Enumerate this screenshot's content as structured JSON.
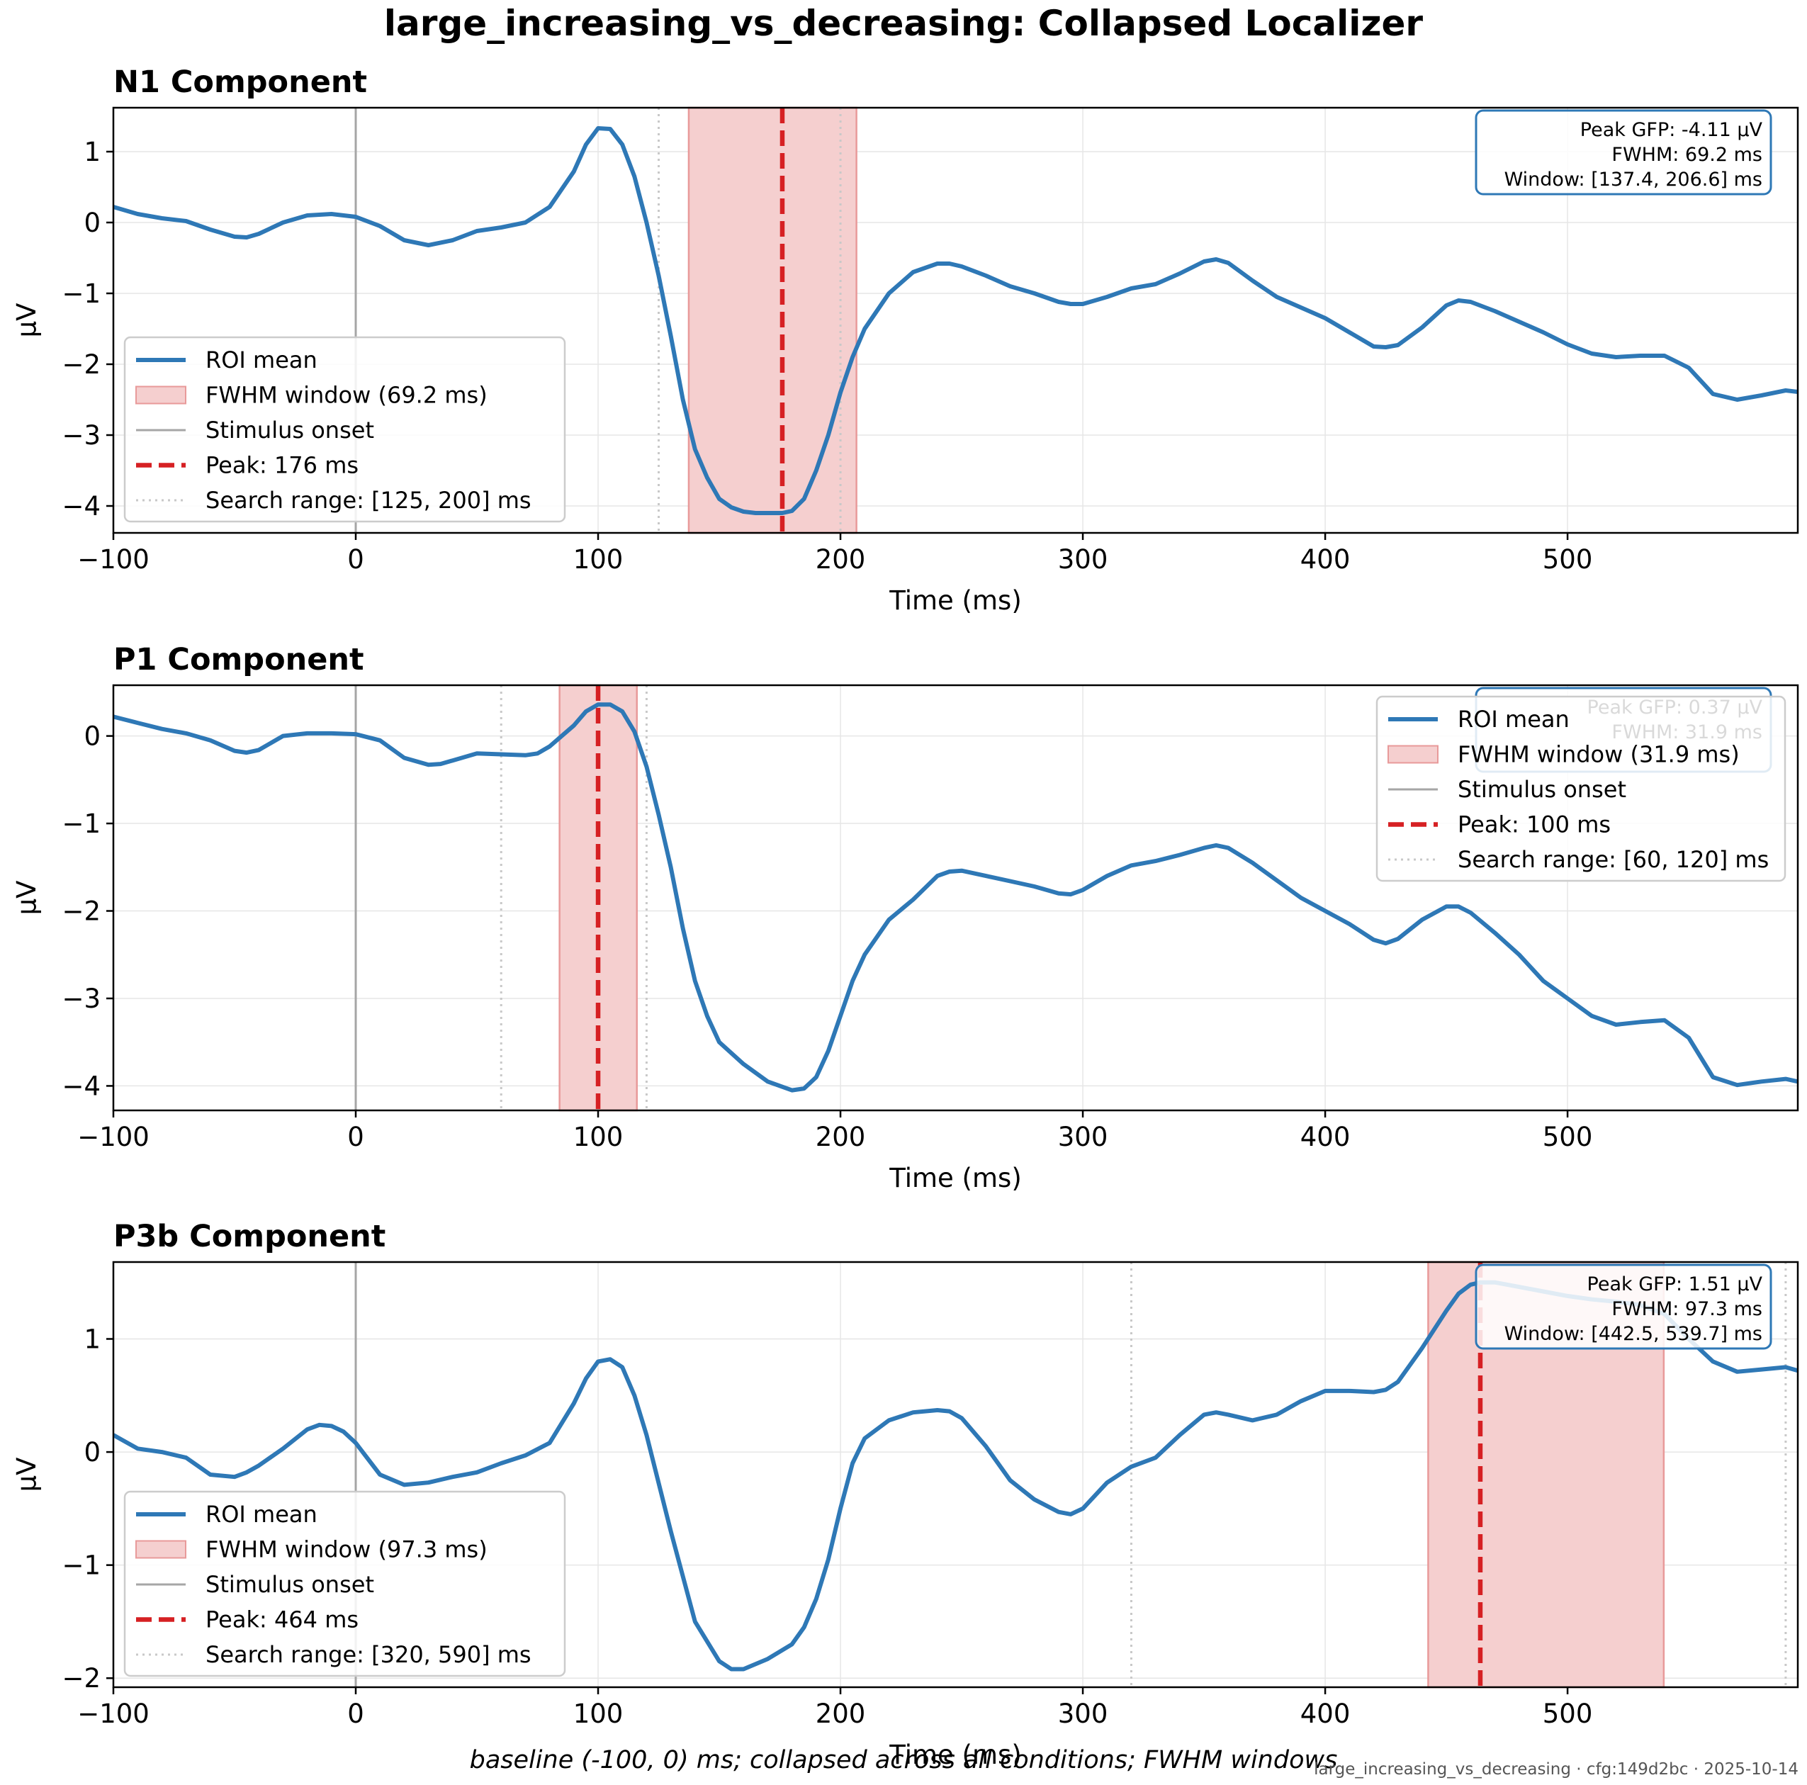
{
  "figure": {
    "title": "large_increasing_vs_decreasing: Collapsed Localizer",
    "footer": "baseline (-100, 0) ms; collapsed across all conditions; FWHM windows",
    "stamp": "large_increasing_vs_decreasing · cfg:149d2bc · 2025-10-14"
  },
  "colors": {
    "roi": "#2e78b6",
    "fwhm_fill": "#f5cfcf",
    "fwhm_edge": "#e89a9a",
    "peak": "#d62023",
    "onset": "#a6a6a6",
    "search": "#c8c8c8",
    "grid": "#e6e6e6"
  },
  "chart_data": [
    {
      "type": "line",
      "title": "N1 Component",
      "xlabel": "Time (ms)",
      "ylabel": "µV",
      "xlim": [
        -100,
        595
      ],
      "ylim": [
        -4.38,
        1.62
      ],
      "xticks": [
        -100,
        0,
        100,
        200,
        300,
        400,
        500
      ],
      "yticks": [
        -4,
        -3,
        -2,
        -1,
        0,
        1
      ],
      "grid": true,
      "legend_position": "lower-left",
      "info_position": "top-right",
      "series": [
        {
          "name": "ROI mean",
          "x": [
            -100,
            -90,
            -80,
            -70,
            -60,
            -50,
            -45,
            -40,
            -30,
            -20,
            -10,
            0,
            10,
            20,
            30,
            40,
            50,
            60,
            70,
            80,
            90,
            95,
            100,
            105,
            110,
            115,
            120,
            125,
            130,
            135,
            140,
            145,
            150,
            155,
            160,
            165,
            170,
            176,
            180,
            185,
            190,
            195,
            200,
            205,
            210,
            220,
            230,
            240,
            245,
            250,
            260,
            270,
            280,
            290,
            295,
            300,
            310,
            320,
            330,
            340,
            350,
            355,
            360,
            370,
            380,
            390,
            400,
            410,
            420,
            425,
            430,
            440,
            450,
            455,
            460,
            470,
            480,
            490,
            500,
            510,
            520,
            530,
            540,
            550,
            560,
            570,
            580,
            590,
            595
          ],
          "y": [
            0.22,
            0.12,
            0.06,
            0.02,
            -0.1,
            -0.2,
            -0.21,
            -0.16,
            0.0,
            0.1,
            0.12,
            0.08,
            -0.05,
            -0.25,
            -0.32,
            -0.25,
            -0.12,
            -0.07,
            0.0,
            0.22,
            0.72,
            1.1,
            1.33,
            1.32,
            1.1,
            0.65,
            0.0,
            -0.75,
            -1.6,
            -2.5,
            -3.2,
            -3.6,
            -3.9,
            -4.02,
            -4.08,
            -4.1,
            -4.1,
            -4.1,
            -4.07,
            -3.9,
            -3.5,
            -3.0,
            -2.4,
            -1.9,
            -1.5,
            -1.0,
            -0.7,
            -0.58,
            -0.58,
            -0.62,
            -0.75,
            -0.9,
            -1.0,
            -1.12,
            -1.15,
            -1.15,
            -1.05,
            -0.93,
            -0.87,
            -0.72,
            -0.55,
            -0.52,
            -0.57,
            -0.82,
            -1.05,
            -1.2,
            -1.35,
            -1.55,
            -1.75,
            -1.76,
            -1.73,
            -1.48,
            -1.17,
            -1.1,
            -1.12,
            -1.25,
            -1.4,
            -1.55,
            -1.72,
            -1.85,
            -1.9,
            -1.88,
            -1.88,
            -2.05,
            -2.42,
            -2.5,
            -2.44,
            -2.37,
            -2.39
          ]
        }
      ],
      "fwhm_window": [
        137.4,
        206.6
      ],
      "peak_x": 176,
      "search_range": [
        125,
        200
      ],
      "legend": [
        "ROI mean",
        "FWHM window (69.2 ms)",
        "Stimulus onset",
        "Peak: 176 ms",
        "Search range: [125, 200] ms"
      ],
      "info": [
        "Peak GFP: -4.11 µV",
        "FWHM: 69.2 ms",
        "Window: [137.4, 206.6] ms"
      ]
    },
    {
      "type": "line",
      "title": "P1 Component",
      "xlabel": "Time (ms)",
      "ylabel": "µV",
      "xlim": [
        -100,
        595
      ],
      "ylim": [
        -4.28,
        0.58
      ],
      "xticks": [
        -100,
        0,
        100,
        200,
        300,
        400,
        500
      ],
      "yticks": [
        -4,
        -3,
        -2,
        -1,
        0
      ],
      "grid": true,
      "legend_position": "top-right",
      "info_position": "top-right",
      "series": [
        {
          "name": "ROI mean",
          "x": [
            -100,
            -90,
            -80,
            -70,
            -60,
            -50,
            -45,
            -40,
            -30,
            -20,
            -10,
            0,
            10,
            20,
            30,
            35,
            40,
            50,
            60,
            70,
            75,
            80,
            90,
            95,
            100,
            105,
            110,
            115,
            120,
            125,
            130,
            135,
            140,
            145,
            150,
            160,
            170,
            180,
            185,
            190,
            195,
            200,
            205,
            210,
            220,
            230,
            240,
            245,
            250,
            260,
            270,
            280,
            290,
            295,
            300,
            310,
            320,
            330,
            340,
            350,
            355,
            360,
            370,
            380,
            390,
            400,
            410,
            420,
            425,
            430,
            440,
            450,
            455,
            460,
            470,
            480,
            490,
            500,
            510,
            520,
            530,
            540,
            550,
            560,
            570,
            580,
            590,
            595
          ],
          "y": [
            0.22,
            0.15,
            0.08,
            0.03,
            -0.05,
            -0.17,
            -0.19,
            -0.16,
            0.0,
            0.03,
            0.03,
            0.02,
            -0.05,
            -0.25,
            -0.33,
            -0.32,
            -0.28,
            -0.2,
            -0.21,
            -0.22,
            -0.2,
            -0.12,
            0.12,
            0.28,
            0.36,
            0.36,
            0.28,
            0.05,
            -0.35,
            -0.9,
            -1.5,
            -2.2,
            -2.8,
            -3.2,
            -3.5,
            -3.75,
            -3.95,
            -4.05,
            -4.03,
            -3.9,
            -3.6,
            -3.2,
            -2.8,
            -2.5,
            -2.1,
            -1.87,
            -1.6,
            -1.55,
            -1.54,
            -1.6,
            -1.66,
            -1.72,
            -1.8,
            -1.81,
            -1.76,
            -1.6,
            -1.48,
            -1.43,
            -1.36,
            -1.28,
            -1.25,
            -1.28,
            -1.45,
            -1.65,
            -1.85,
            -2.0,
            -2.15,
            -2.33,
            -2.37,
            -2.32,
            -2.1,
            -1.95,
            -1.95,
            -2.02,
            -2.25,
            -2.5,
            -2.8,
            -3.0,
            -3.2,
            -3.3,
            -3.27,
            -3.25,
            -3.45,
            -3.9,
            -3.99,
            -3.95,
            -3.92,
            -3.95
          ]
        }
      ],
      "fwhm_window": [
        84.1,
        116.0
      ],
      "peak_x": 100,
      "search_range": [
        60,
        120
      ],
      "legend": [
        "ROI mean",
        "FWHM window (31.9 ms)",
        "Stimulus onset",
        "Peak: 100 ms",
        "Search range: [60, 120] ms"
      ],
      "info": [
        "Peak GFP: 0.37 µV",
        "FWHM: 31.9 ms",
        ""
      ]
    },
    {
      "type": "line",
      "title": "P3b Component",
      "xlabel": "Time (ms)",
      "ylabel": "µV",
      "xlim": [
        -100,
        595
      ],
      "ylim": [
        -2.08,
        1.68
      ],
      "xticks": [
        -100,
        0,
        100,
        200,
        300,
        400,
        500
      ],
      "yticks": [
        -2,
        -1,
        0,
        1
      ],
      "grid": true,
      "legend_position": "lower-left",
      "info_position": "top-right",
      "series": [
        {
          "name": "ROI mean",
          "x": [
            -100,
            -90,
            -80,
            -70,
            -60,
            -50,
            -45,
            -40,
            -30,
            -20,
            -15,
            -10,
            -5,
            0,
            10,
            20,
            30,
            40,
            50,
            60,
            70,
            80,
            90,
            95,
            100,
            105,
            110,
            115,
            120,
            130,
            140,
            150,
            155,
            160,
            170,
            180,
            185,
            190,
            195,
            200,
            205,
            210,
            220,
            230,
            240,
            245,
            250,
            260,
            270,
            280,
            290,
            295,
            300,
            310,
            320,
            330,
            340,
            350,
            355,
            360,
            370,
            380,
            390,
            400,
            410,
            420,
            425,
            430,
            440,
            450,
            455,
            460,
            464,
            470,
            480,
            490,
            500,
            510,
            520,
            530,
            540,
            550,
            560,
            570,
            580,
            590,
            595
          ],
          "y": [
            0.15,
            0.03,
            0.0,
            -0.05,
            -0.2,
            -0.22,
            -0.18,
            -0.12,
            0.03,
            0.2,
            0.24,
            0.23,
            0.18,
            0.08,
            -0.2,
            -0.29,
            -0.27,
            -0.22,
            -0.18,
            -0.1,
            -0.03,
            0.08,
            0.43,
            0.65,
            0.8,
            0.82,
            0.75,
            0.5,
            0.15,
            -0.7,
            -1.5,
            -1.85,
            -1.92,
            -1.92,
            -1.83,
            -1.7,
            -1.55,
            -1.3,
            -0.95,
            -0.5,
            -0.1,
            0.12,
            0.28,
            0.35,
            0.37,
            0.36,
            0.3,
            0.05,
            -0.25,
            -0.42,
            -0.53,
            -0.55,
            -0.5,
            -0.27,
            -0.13,
            -0.05,
            0.15,
            0.33,
            0.35,
            0.33,
            0.28,
            0.33,
            0.45,
            0.54,
            0.54,
            0.53,
            0.55,
            0.62,
            0.92,
            1.25,
            1.4,
            1.48,
            1.5,
            1.5,
            1.46,
            1.42,
            1.38,
            1.35,
            1.33,
            1.3,
            1.22,
            1.0,
            0.8,
            0.71,
            0.73,
            0.75,
            0.72
          ]
        }
      ],
      "fwhm_window": [
        442.5,
        539.7
      ],
      "peak_x": 464,
      "search_range": [
        320,
        590
      ],
      "legend": [
        "ROI mean",
        "FWHM window (97.3 ms)",
        "Stimulus onset",
        "Peak: 464 ms",
        "Search range: [320, 590] ms"
      ],
      "info": [
        "Peak GFP: 1.51 µV",
        "FWHM: 97.3 ms",
        "Window: [442.5, 539.7] ms"
      ]
    }
  ]
}
